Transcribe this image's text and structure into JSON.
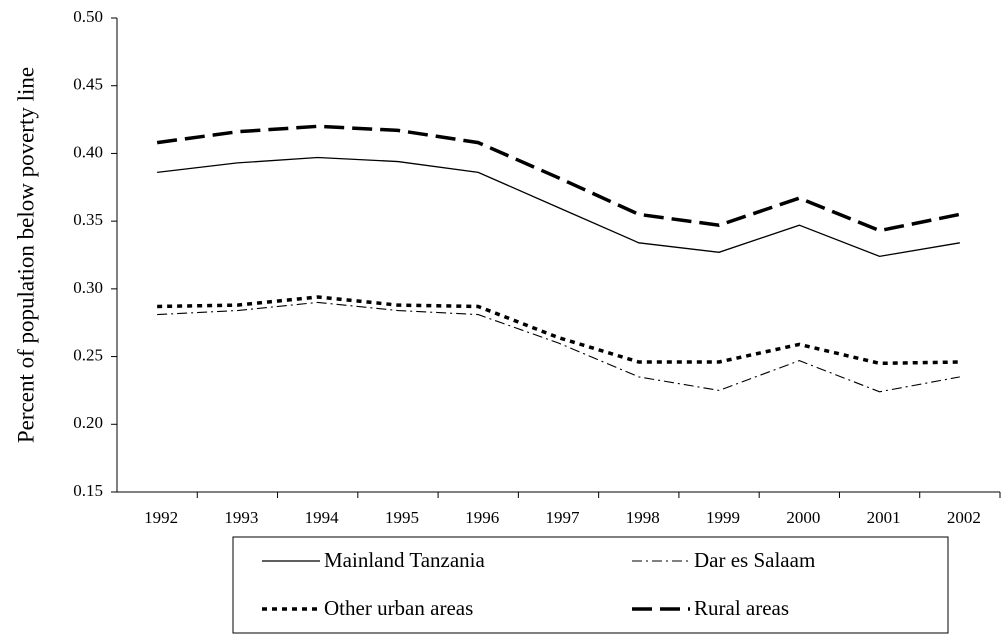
{
  "chart_data": {
    "type": "line",
    "y_label": "Percent of population below poverty line",
    "categories": [
      "1992",
      "1993",
      "1994",
      "1995",
      "1996",
      "1997",
      "1998",
      "1999",
      "2000",
      "2001",
      "2002"
    ],
    "ylim": [
      0.15,
      0.5
    ],
    "yticks": [
      {
        "value": 0.15,
        "label": "0.15"
      },
      {
        "value": 0.2,
        "label": "0.20"
      },
      {
        "value": 0.25,
        "label": "0.25"
      },
      {
        "value": 0.3,
        "label": "0.30"
      },
      {
        "value": 0.35,
        "label": "0.35"
      },
      {
        "value": 0.4,
        "label": "0.40"
      },
      {
        "value": 0.45,
        "label": "0.45"
      },
      {
        "value": 0.5,
        "label": "0.50"
      }
    ],
    "series": [
      {
        "name": "Mainland Tanzania",
        "color": "#000000",
        "dash": "solid",
        "values": [
          0.386,
          0.393,
          0.397,
          0.394,
          0.386,
          0.36,
          0.334,
          0.327,
          0.347,
          0.324,
          0.334
        ]
      },
      {
        "name": "Dar es Salaam",
        "color": "#000000",
        "dash": "dashdot",
        "values": [
          0.281,
          0.284,
          0.29,
          0.284,
          0.281,
          0.26,
          0.235,
          0.225,
          0.247,
          0.224,
          0.235
        ]
      },
      {
        "name": "Other urban areas",
        "color": "#000000",
        "dash": "dotted",
        "values": [
          0.287,
          0.288,
          0.294,
          0.288,
          0.287,
          0.264,
          0.246,
          0.246,
          0.259,
          0.245,
          0.246
        ]
      },
      {
        "name": "Rural areas",
        "color": "#000000",
        "dash": "dashed",
        "values": [
          0.408,
          0.416,
          0.42,
          0.417,
          0.408,
          0.382,
          0.355,
          0.347,
          0.367,
          0.343,
          0.355
        ]
      }
    ]
  }
}
